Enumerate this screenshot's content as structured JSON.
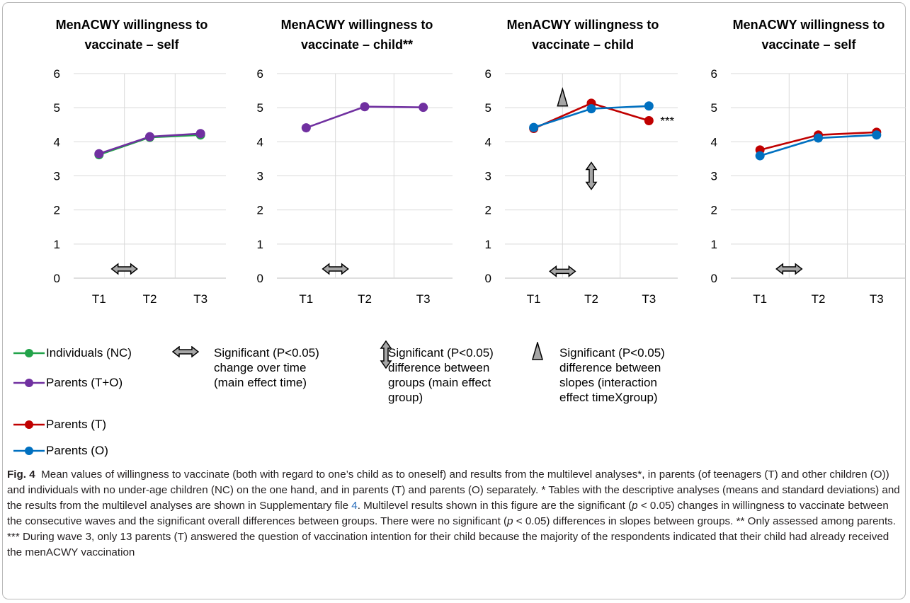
{
  "colors": {
    "individuals_nc": "#22a34a",
    "parents_to": "#7030a0",
    "parents_t": "#c00000",
    "parents_o": "#0070c0",
    "grid": "#d9d9d9",
    "symbol_fill": "#a6a6a6"
  },
  "chart_data": [
    {
      "type": "line",
      "title": "MenACWY willingness to vaccinate – self",
      "title_lines": [
        "MenACWY willingness to",
        "vaccinate – self"
      ],
      "categories": [
        "T1",
        "T2",
        "T3"
      ],
      "y_ticks": [
        "0",
        "1",
        "2",
        "3",
        "4",
        "5",
        "6"
      ],
      "ylim": [
        0,
        6
      ],
      "grid": true,
      "series": [
        {
          "name": "Individuals (NC)",
          "color": "#22a34a",
          "values": [
            3.62,
            4.13,
            4.2
          ]
        },
        {
          "name": "Parents (T+O)",
          "color": "#7030a0",
          "values": [
            3.65,
            4.15,
            4.24
          ]
        }
      ],
      "symbols": [
        {
          "type": "time",
          "icon": "double-horizontal-arrow-icon",
          "x": 1.5,
          "y": 0.27
        }
      ]
    },
    {
      "type": "line",
      "title": "MenACWY willingness to vaccinate – child**",
      "title_lines": [
        "MenACWY willingness to",
        "vaccinate – child**"
      ],
      "categories": [
        "T1",
        "T2",
        "T3"
      ],
      "y_ticks": [
        "0",
        "1",
        "2",
        "3",
        "4",
        "5",
        "6"
      ],
      "ylim": [
        0,
        6
      ],
      "grid": true,
      "series": [
        {
          "name": "Parents (T+O)",
          "color": "#7030a0",
          "values": [
            4.41,
            5.03,
            5.01
          ]
        }
      ],
      "symbols": [
        {
          "type": "time",
          "icon": "double-horizontal-arrow-icon",
          "x": 1.5,
          "y": 0.27
        }
      ]
    },
    {
      "type": "line",
      "title": "MenACWY willingness to vaccinate – child",
      "title_lines": [
        "MenACWY willingness to",
        "vaccinate – child"
      ],
      "categories": [
        "T1",
        "T2",
        "T3"
      ],
      "y_ticks": [
        "0",
        "1",
        "2",
        "3",
        "4",
        "5",
        "6"
      ],
      "ylim": [
        0,
        6
      ],
      "grid": true,
      "series": [
        {
          "name": "Parents (T)",
          "color": "#c00000",
          "values": [
            4.39,
            5.13,
            4.62
          ]
        },
        {
          "name": "Parents (O)",
          "color": "#0070c0",
          "values": [
            4.42,
            4.97,
            5.05
          ]
        }
      ],
      "point_annotations": [
        {
          "text": "***",
          "x": 3,
          "y": 4.62
        }
      ],
      "symbols": [
        {
          "type": "time",
          "icon": "double-horizontal-arrow-icon",
          "x": 1.5,
          "y": 0.2
        },
        {
          "type": "group",
          "icon": "double-vertical-arrow-icon",
          "x": 2,
          "y": 3.0
        },
        {
          "type": "interaction",
          "icon": "triangle-icon",
          "x": 1.5,
          "y": 5.3
        }
      ]
    },
    {
      "type": "line",
      "title": "MenACWY willingness to vaccinate – self",
      "title_lines": [
        "MenACWY willingness to",
        "vaccinate – self"
      ],
      "categories": [
        "T1",
        "T2",
        "T3"
      ],
      "y_ticks": [
        "0",
        "1",
        "2",
        "3",
        "4",
        "5",
        "6"
      ],
      "ylim": [
        0,
        6
      ],
      "grid": true,
      "series": [
        {
          "name": "Parents (T)",
          "color": "#c00000",
          "values": [
            3.76,
            4.2,
            4.28
          ]
        },
        {
          "name": "Parents (O)",
          "color": "#0070c0",
          "values": [
            3.59,
            4.11,
            4.2
          ]
        }
      ],
      "symbols": [
        {
          "type": "time",
          "icon": "double-horizontal-arrow-icon",
          "x": 1.5,
          "y": 0.27
        }
      ]
    }
  ],
  "legend": {
    "series": [
      {
        "label": "Individuals (NC)",
        "color": "#22a34a"
      },
      {
        "label": "Parents (T+O)",
        "color": "#7030a0"
      },
      {
        "label": "Parents (T)",
        "color": "#c00000"
      },
      {
        "label": "Parents (O)",
        "color": "#0070c0"
      }
    ],
    "symbols": [
      {
        "icon": "double-horizontal-arrow-icon",
        "lines": [
          "Significant (P<0.05)",
          "change over time",
          "(main effect time)"
        ]
      },
      {
        "icon": "double-vertical-arrow-icon",
        "lines": [
          "Significant (P<0.05)",
          "difference between",
          "groups (main effect",
          "group)"
        ]
      },
      {
        "icon": "triangle-icon",
        "lines": [
          "Significant (P<0.05)",
          "difference between",
          "slopes (interaction",
          "effect timeXgroup)"
        ]
      }
    ]
  },
  "caption": {
    "label": "Fig. 4",
    "p1": "Mean values of willingness to vaccinate (both with regard to one’s child as to oneself) and results from the multilevel analyses*, in parents (of teenagers (T) and other children (O)) and individuals with no under-age children (NC) on the one hand, and in parents (T) and parents (O) separately. * Tables with the descriptive analyses (means and standard deviations) and the results from the multilevel analyses are shown in Supplementary file ",
    "file_ref": "4",
    "p2": ". Multilevel results shown in this figure are the significant (",
    "p_sym": "p",
    "p3": " < 0.05) changes in willingness to vaccinate between the consecutive waves and the significant overall differences between groups. There were no significant (",
    "p4": " < 0.05) differences in slopes between groups. ** Only assessed among parents. *** During wave 3, only 13 parents (T) answered the question of vaccination intention for their child because the majority of the respondents indicated that their child had already received the menACWY vaccination"
  }
}
